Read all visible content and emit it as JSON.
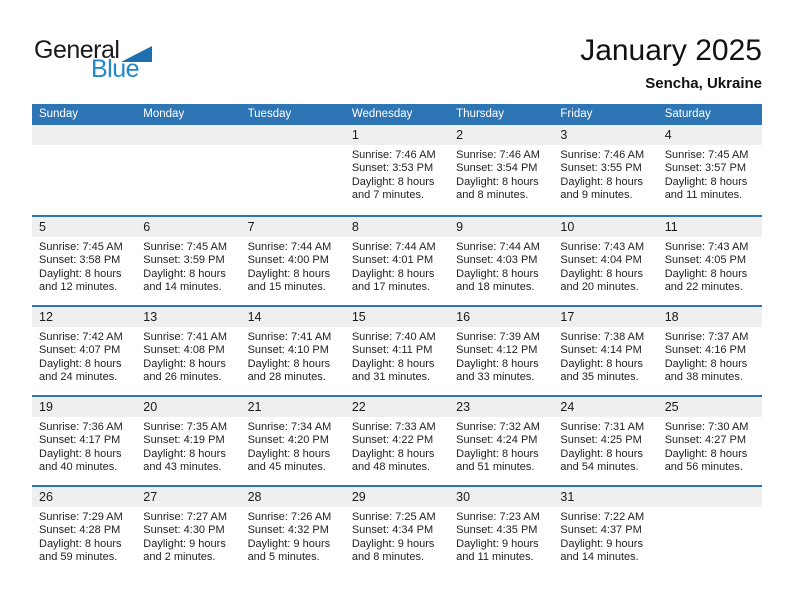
{
  "logo": {
    "text_top": "General",
    "text_bottom": "Blue"
  },
  "title": {
    "month_year": "January 2025",
    "location": "Sencha, Ukraine"
  },
  "colors": {
    "header_blue": "#2e75b6",
    "band_gray": "#efefef",
    "logo_black": "#1a1a1a",
    "logo_blue": "#2189cb",
    "triangle_blue": "#1d6fae",
    "text_dark": "#1f1f1f"
  },
  "calendar": {
    "day_headers": [
      "Sunday",
      "Monday",
      "Tuesday",
      "Wednesday",
      "Thursday",
      "Friday",
      "Saturday"
    ],
    "weeks": [
      [
        null,
        null,
        null,
        {
          "day": "1",
          "sunrise": "Sunrise: 7:46 AM",
          "sunset": "Sunset: 3:53 PM",
          "daylight": "Daylight: 8 hours and 7 minutes."
        },
        {
          "day": "2",
          "sunrise": "Sunrise: 7:46 AM",
          "sunset": "Sunset: 3:54 PM",
          "daylight": "Daylight: 8 hours and 8 minutes."
        },
        {
          "day": "3",
          "sunrise": "Sunrise: 7:46 AM",
          "sunset": "Sunset: 3:55 PM",
          "daylight": "Daylight: 8 hours and 9 minutes."
        },
        {
          "day": "4",
          "sunrise": "Sunrise: 7:45 AM",
          "sunset": "Sunset: 3:57 PM",
          "daylight": "Daylight: 8 hours and 11 minutes."
        }
      ],
      [
        {
          "day": "5",
          "sunrise": "Sunrise: 7:45 AM",
          "sunset": "Sunset: 3:58 PM",
          "daylight": "Daylight: 8 hours and 12 minutes."
        },
        {
          "day": "6",
          "sunrise": "Sunrise: 7:45 AM",
          "sunset": "Sunset: 3:59 PM",
          "daylight": "Daylight: 8 hours and 14 minutes."
        },
        {
          "day": "7",
          "sunrise": "Sunrise: 7:44 AM",
          "sunset": "Sunset: 4:00 PM",
          "daylight": "Daylight: 8 hours and 15 minutes."
        },
        {
          "day": "8",
          "sunrise": "Sunrise: 7:44 AM",
          "sunset": "Sunset: 4:01 PM",
          "daylight": "Daylight: 8 hours and 17 minutes."
        },
        {
          "day": "9",
          "sunrise": "Sunrise: 7:44 AM",
          "sunset": "Sunset: 4:03 PM",
          "daylight": "Daylight: 8 hours and 18 minutes."
        },
        {
          "day": "10",
          "sunrise": "Sunrise: 7:43 AM",
          "sunset": "Sunset: 4:04 PM",
          "daylight": "Daylight: 8 hours and 20 minutes."
        },
        {
          "day": "11",
          "sunrise": "Sunrise: 7:43 AM",
          "sunset": "Sunset: 4:05 PM",
          "daylight": "Daylight: 8 hours and 22 minutes."
        }
      ],
      [
        {
          "day": "12",
          "sunrise": "Sunrise: 7:42 AM",
          "sunset": "Sunset: 4:07 PM",
          "daylight": "Daylight: 8 hours and 24 minutes."
        },
        {
          "day": "13",
          "sunrise": "Sunrise: 7:41 AM",
          "sunset": "Sunset: 4:08 PM",
          "daylight": "Daylight: 8 hours and 26 minutes."
        },
        {
          "day": "14",
          "sunrise": "Sunrise: 7:41 AM",
          "sunset": "Sunset: 4:10 PM",
          "daylight": "Daylight: 8 hours and 28 minutes."
        },
        {
          "day": "15",
          "sunrise": "Sunrise: 7:40 AM",
          "sunset": "Sunset: 4:11 PM",
          "daylight": "Daylight: 8 hours and 31 minutes."
        },
        {
          "day": "16",
          "sunrise": "Sunrise: 7:39 AM",
          "sunset": "Sunset: 4:12 PM",
          "daylight": "Daylight: 8 hours and 33 minutes."
        },
        {
          "day": "17",
          "sunrise": "Sunrise: 7:38 AM",
          "sunset": "Sunset: 4:14 PM",
          "daylight": "Daylight: 8 hours and 35 minutes."
        },
        {
          "day": "18",
          "sunrise": "Sunrise: 7:37 AM",
          "sunset": "Sunset: 4:16 PM",
          "daylight": "Daylight: 8 hours and 38 minutes."
        }
      ],
      [
        {
          "day": "19",
          "sunrise": "Sunrise: 7:36 AM",
          "sunset": "Sunset: 4:17 PM",
          "daylight": "Daylight: 8 hours and 40 minutes."
        },
        {
          "day": "20",
          "sunrise": "Sunrise: 7:35 AM",
          "sunset": "Sunset: 4:19 PM",
          "daylight": "Daylight: 8 hours and 43 minutes."
        },
        {
          "day": "21",
          "sunrise": "Sunrise: 7:34 AM",
          "sunset": "Sunset: 4:20 PM",
          "daylight": "Daylight: 8 hours and 45 minutes."
        },
        {
          "day": "22",
          "sunrise": "Sunrise: 7:33 AM",
          "sunset": "Sunset: 4:22 PM",
          "daylight": "Daylight: 8 hours and 48 minutes."
        },
        {
          "day": "23",
          "sunrise": "Sunrise: 7:32 AM",
          "sunset": "Sunset: 4:24 PM",
          "daylight": "Daylight: 8 hours and 51 minutes."
        },
        {
          "day": "24",
          "sunrise": "Sunrise: 7:31 AM",
          "sunset": "Sunset: 4:25 PM",
          "daylight": "Daylight: 8 hours and 54 minutes."
        },
        {
          "day": "25",
          "sunrise": "Sunrise: 7:30 AM",
          "sunset": "Sunset: 4:27 PM",
          "daylight": "Daylight: 8 hours and 56 minutes."
        }
      ],
      [
        {
          "day": "26",
          "sunrise": "Sunrise: 7:29 AM",
          "sunset": "Sunset: 4:28 PM",
          "daylight": "Daylight: 8 hours and 59 minutes."
        },
        {
          "day": "27",
          "sunrise": "Sunrise: 7:27 AM",
          "sunset": "Sunset: 4:30 PM",
          "daylight": "Daylight: 9 hours and 2 minutes."
        },
        {
          "day": "28",
          "sunrise": "Sunrise: 7:26 AM",
          "sunset": "Sunset: 4:32 PM",
          "daylight": "Daylight: 9 hours and 5 minutes."
        },
        {
          "day": "29",
          "sunrise": "Sunrise: 7:25 AM",
          "sunset": "Sunset: 4:34 PM",
          "daylight": "Daylight: 9 hours and 8 minutes."
        },
        {
          "day": "30",
          "sunrise": "Sunrise: 7:23 AM",
          "sunset": "Sunset: 4:35 PM",
          "daylight": "Daylight: 9 hours and 11 minutes."
        },
        {
          "day": "31",
          "sunrise": "Sunrise: 7:22 AM",
          "sunset": "Sunset: 4:37 PM",
          "daylight": "Daylight: 9 hours and 14 minutes."
        },
        null
      ]
    ]
  }
}
